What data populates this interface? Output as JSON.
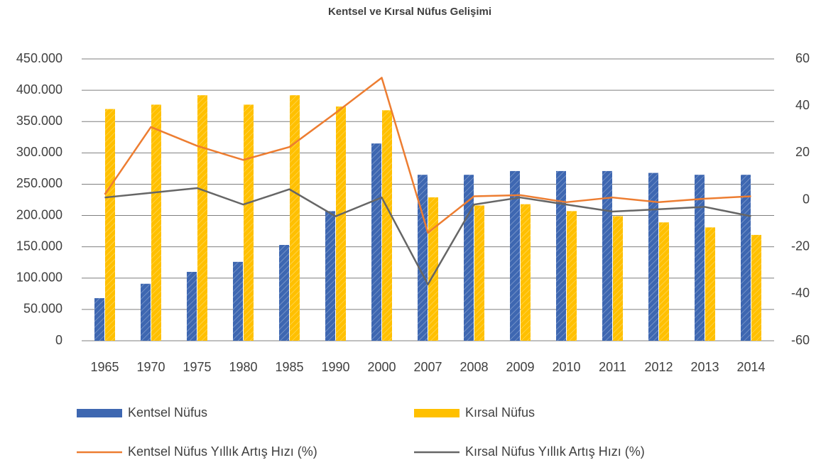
{
  "chart_data": {
    "type": "bar",
    "title": "Kentsel ve Kırsal Nüfus Gelişimi",
    "categories": [
      "1965",
      "1970",
      "1975",
      "1980",
      "1985",
      "1990",
      "2000",
      "2007",
      "2008",
      "2009",
      "2010",
      "2011",
      "2012",
      "2013",
      "2014"
    ],
    "series": [
      {
        "name": "Kentsel Nüfus",
        "type": "bar",
        "color": "#3e67b1",
        "values": [
          68000,
          91000,
          110000,
          126000,
          153000,
          207000,
          315000,
          265000,
          265000,
          271000,
          271000,
          271000,
          268000,
          265000,
          265000
        ]
      },
      {
        "name": "Kırsal Nüfus",
        "type": "bar",
        "color": "#ffc000",
        "values": [
          370000,
          377000,
          392000,
          377000,
          392000,
          374000,
          368000,
          229000,
          216000,
          218000,
          207000,
          199000,
          189000,
          181000,
          169000
        ]
      },
      {
        "name": "Kentsel Nüfus Yıllık Artış Hızı (%)",
        "type": "line",
        "axis": "y2",
        "color": "#ed7d31",
        "values": [
          2.3,
          31,
          23,
          17,
          22.5,
          37,
          52,
          -14,
          1.5,
          2,
          -1,
          1,
          -1,
          0.5,
          1.5
        ]
      },
      {
        "name": "Kırsal Nüfus Yıllık Artış Hızı (%)",
        "type": "line",
        "axis": "y2",
        "color": "#666666",
        "values": [
          1,
          3,
          5,
          -2,
          4.5,
          -7,
          1,
          -36,
          -2,
          1,
          -2,
          -5,
          -4,
          -3,
          -7
        ]
      }
    ],
    "ylim": [
      0,
      450000
    ],
    "yticks": [
      0,
      {
        "value": 50000,
        "label": "50.000"
      },
      {
        "value": 100000,
        "label": "100.000"
      },
      {
        "value": 150000,
        "label": "150.000"
      },
      {
        "value": 200000,
        "label": "200.000"
      },
      {
        "value": 250000,
        "label": "250.000"
      },
      {
        "value": 300000,
        "label": "300.000"
      },
      {
        "value": 350000,
        "label": "350.000"
      },
      {
        "value": 400000,
        "label": "400.000"
      },
      {
        "value": 450000,
        "label": "450.000"
      }
    ],
    "y2lim": [
      -60,
      60
    ],
    "y2ticks": [
      -60,
      -40,
      -20,
      0,
      20,
      40,
      60
    ],
    "grid": true,
    "legend": "bottom"
  }
}
